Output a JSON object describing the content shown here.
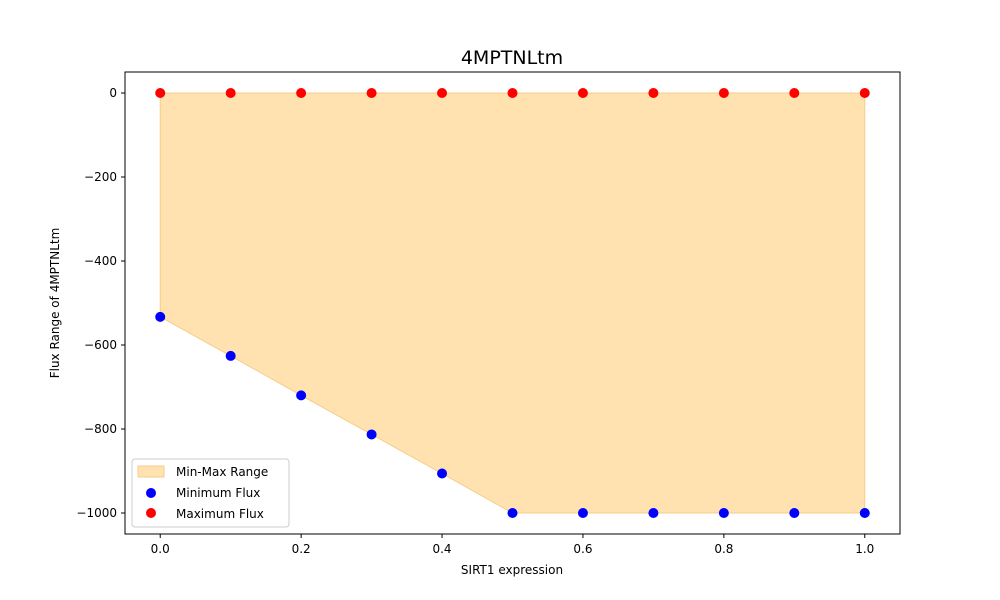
{
  "chart_data": {
    "type": "scatter",
    "title": "4MPTNLtm",
    "xlabel": "SIRT1 expression",
    "ylabel": "Flux Range of 4MPTNLtm",
    "xlim": [
      -0.05,
      1.05
    ],
    "ylim": [
      -1050,
      50
    ],
    "xticks": [
      0.0,
      0.2,
      0.4,
      0.6,
      0.8,
      1.0
    ],
    "xtick_labels": [
      "0.0",
      "0.2",
      "0.4",
      "0.6",
      "0.8",
      "1.0"
    ],
    "yticks": [
      0,
      -200,
      -400,
      -600,
      -800,
      -1000
    ],
    "ytick_labels": [
      "0",
      "−200",
      "−400",
      "−600",
      "−800",
      "−1000"
    ],
    "x": [
      0.0,
      0.1,
      0.2,
      0.3,
      0.4,
      0.5,
      0.6,
      0.7,
      0.8,
      0.9,
      1.0
    ],
    "fill": {
      "name": "Min-Max Range",
      "color": "#FFE2B0",
      "edge_color": "#F5CE8A"
    },
    "series": [
      {
        "name": "Minimum Flux",
        "color": "#0000ff",
        "values": [
          -533,
          -626,
          -720,
          -813,
          -906,
          -1000,
          -1000,
          -1000,
          -1000,
          -1000,
          -1000
        ]
      },
      {
        "name": "Maximum Flux",
        "color": "#ff0000",
        "values": [
          0,
          0,
          0,
          0,
          0,
          0,
          0,
          0,
          0,
          0,
          0
        ]
      }
    ],
    "legend": {
      "position": "lower-left",
      "entries": [
        "Min-Max Range",
        "Minimum Flux",
        "Maximum Flux"
      ]
    },
    "grid": false
  }
}
